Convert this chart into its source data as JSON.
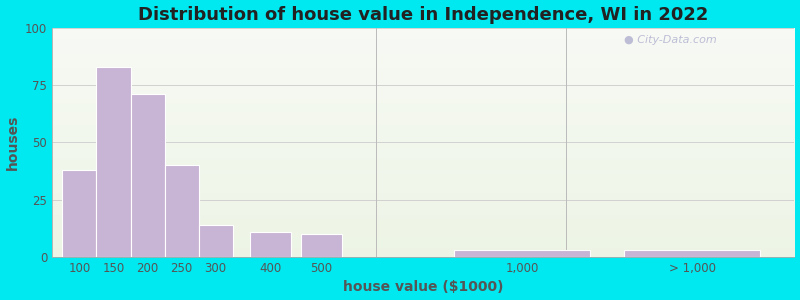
{
  "title": "Distribution of house value in Independence, WI in 2022",
  "xlabel": "house value ($1000)",
  "ylabel": "houses",
  "bar_values": [
    38,
    83,
    71,
    40,
    14,
    11,
    10,
    3,
    3
  ],
  "bar_color": "#c8b4d4",
  "bar_edgecolor": "#ffffff",
  "ylim": [
    0,
    100
  ],
  "yticks": [
    0,
    25,
    50,
    75,
    100
  ],
  "xtick_labels": [
    "100",
    "150",
    "200",
    "250",
    "300",
    "400",
    "500",
    "1,000",
    "> 1,000"
  ],
  "title_fontsize": 13,
  "axis_label_fontsize": 10,
  "tick_fontsize": 8.5,
  "background_outer": "#00e8f0",
  "grid_color": "#e8e8e8",
  "watermark_text": "City-Data.com",
  "title_color": "#222222",
  "axis_label_color": "#555555",
  "tick_color": "#555555",
  "fake_positions": [
    0,
    1,
    2,
    3,
    4,
    5.5,
    7.0,
    11.5,
    16.5
  ],
  "fake_widths": [
    1,
    1,
    1,
    1,
    1,
    1.2,
    1.2,
    4.0,
    4.0
  ],
  "xlim": [
    -0.3,
    21.5
  ],
  "vline1_x": 9.2,
  "vline2_x": 14.8
}
